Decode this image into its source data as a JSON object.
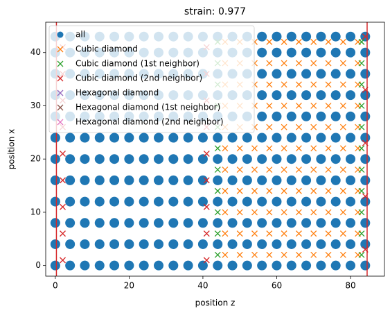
{
  "chart_data": {
    "type": "scatter",
    "title": "strain: 0.977",
    "xlabel": "position z",
    "ylabel": "position x",
    "xlim": [
      -2.6,
      89.2
    ],
    "ylim": [
      -2,
      45.7
    ],
    "xticks": [
      0,
      20,
      40,
      60,
      80
    ],
    "yticks": [
      0,
      10,
      20,
      30,
      40
    ],
    "grid": false,
    "legend": "upper left",
    "vlines": [
      0.3,
      84.5
    ],
    "vline_color": "#d62728",
    "series": [
      {
        "name": "all",
        "color": "#1f77b4",
        "marker": "o",
        "x": [
          0,
          4,
          8,
          12,
          16,
          20,
          24,
          28,
          32,
          36,
          40,
          44,
          48,
          52,
          56,
          60,
          64,
          68,
          72,
          76,
          80,
          84,
          0,
          4,
          8,
          12,
          16,
          20,
          24,
          28,
          32,
          36,
          40,
          44,
          48,
          52,
          56,
          60,
          64,
          68,
          72,
          76,
          80,
          84,
          0,
          4,
          8,
          12,
          16,
          20,
          24,
          28,
          32,
          36,
          40,
          44,
          48,
          52,
          56,
          60,
          64,
          68,
          72,
          76,
          80,
          84,
          0,
          4,
          8,
          12,
          16,
          20,
          24,
          28,
          32,
          36,
          40,
          44,
          48,
          52,
          56,
          60,
          64,
          68,
          72,
          76,
          80,
          84,
          0,
          4,
          8,
          12,
          16,
          20,
          24,
          28,
          32,
          36,
          40,
          44,
          48,
          52,
          56,
          60,
          64,
          68,
          72,
          76,
          80,
          84,
          0,
          4,
          8,
          12,
          16,
          20,
          24,
          28,
          32,
          36,
          40,
          44,
          48,
          52,
          56,
          60,
          64,
          68,
          72,
          76,
          80,
          84,
          0,
          4,
          8,
          12,
          16,
          20,
          24,
          28,
          32,
          36,
          40,
          44,
          48,
          52,
          56,
          60,
          64,
          68,
          72,
          76,
          80,
          84,
          0,
          4,
          8,
          12,
          16,
          20,
          24,
          28,
          32,
          36,
          40,
          44,
          48,
          52,
          56,
          60,
          64,
          68,
          72,
          76,
          80,
          84,
          0,
          4,
          8,
          12,
          16,
          20,
          24,
          28,
          32,
          36,
          40,
          44,
          48,
          52,
          56,
          60,
          64,
          68,
          72,
          76,
          80,
          84,
          0,
          4,
          8,
          12,
          16,
          20,
          24,
          28,
          32,
          36,
          40,
          44,
          48,
          52,
          56,
          60,
          64,
          68,
          72,
          76,
          80,
          84,
          0,
          4,
          8,
          12,
          16,
          20,
          24,
          28,
          32,
          36,
          40,
          44,
          48,
          52,
          56,
          60,
          64,
          68,
          72,
          76,
          80,
          84,
          0,
          4,
          8,
          12,
          16,
          20,
          24,
          28,
          32,
          36,
          40,
          44,
          48,
          52,
          56,
          60,
          64,
          68,
          72,
          76,
          80,
          84
        ],
        "values": [
          0,
          0,
          0,
          0,
          0,
          0,
          0,
          0,
          0,
          0,
          0,
          0,
          0,
          0,
          0,
          0,
          0,
          0,
          0,
          0,
          0,
          0,
          4,
          4,
          4,
          4,
          4,
          4,
          4,
          4,
          4,
          4,
          4,
          4,
          4,
          4,
          4,
          4,
          4,
          4,
          4,
          4,
          4,
          4,
          8,
          8,
          8,
          8,
          8,
          8,
          8,
          8,
          8,
          8,
          8,
          8,
          8,
          8,
          8,
          8,
          8,
          8,
          8,
          8,
          8,
          8,
          12,
          12,
          12,
          12,
          12,
          12,
          12,
          12,
          12,
          12,
          12,
          12,
          12,
          12,
          12,
          12,
          12,
          12,
          12,
          12,
          12,
          12,
          16,
          16,
          16,
          16,
          16,
          16,
          16,
          16,
          16,
          16,
          16,
          16,
          16,
          16,
          16,
          16,
          16,
          16,
          16,
          16,
          16,
          16,
          20,
          20,
          20,
          20,
          20,
          20,
          20,
          20,
          20,
          20,
          20,
          20,
          20,
          20,
          20,
          20,
          20,
          20,
          20,
          20,
          20,
          20,
          24,
          24,
          24,
          24,
          24,
          24,
          24,
          24,
          24,
          24,
          24,
          24,
          24,
          24,
          24,
          24,
          24,
          24,
          24,
          24,
          24,
          24,
          28,
          28,
          28,
          28,
          28,
          28,
          28,
          28,
          28,
          28,
          28,
          28,
          28,
          28,
          28,
          28,
          28,
          28,
          28,
          28,
          28,
          28,
          32,
          32,
          32,
          32,
          32,
          32,
          32,
          32,
          32,
          32,
          32,
          32,
          32,
          32,
          32,
          32,
          32,
          32,
          32,
          32,
          32,
          32,
          36,
          36,
          36,
          36,
          36,
          36,
          36,
          36,
          36,
          36,
          36,
          36,
          36,
          36,
          36,
          36,
          36,
          36,
          36,
          36,
          36,
          36,
          40,
          40,
          40,
          40,
          40,
          40,
          40,
          40,
          40,
          40,
          40,
          40,
          40,
          40,
          40,
          40,
          40,
          40,
          40,
          40,
          40,
          40,
          43,
          43,
          43,
          43,
          43,
          43,
          43,
          43,
          43,
          43,
          43,
          43,
          43,
          43,
          43,
          43,
          43,
          43,
          43,
          43,
          43,
          43
        ]
      },
      {
        "name": "Cubic diamond",
        "color": "#ff7f0e",
        "marker": "x",
        "x": [
          46,
          50,
          54,
          58,
          62,
          66,
          70,
          74,
          78,
          82,
          46,
          50,
          54,
          58,
          62,
          66,
          70,
          74,
          78,
          82,
          46,
          50,
          54,
          58,
          62,
          66,
          70,
          74,
          78,
          82,
          46,
          50,
          54,
          58,
          62,
          66,
          70,
          74,
          78,
          82,
          46,
          50,
          54,
          58,
          62,
          66,
          70,
          74,
          78,
          82,
          46,
          50,
          54,
          58,
          62,
          66,
          70,
          74,
          78,
          82,
          46,
          50,
          54,
          58,
          62,
          66,
          70,
          74,
          78,
          82,
          46,
          50,
          54,
          58,
          62,
          66,
          70,
          74,
          78,
          82,
          46,
          50,
          54,
          58,
          62,
          66,
          70,
          74,
          78,
          82,
          46,
          50,
          54,
          58,
          62,
          66,
          70,
          74,
          78,
          82,
          46,
          50,
          54,
          58,
          62,
          66,
          70,
          74,
          78,
          82
        ],
        "values": [
          2,
          2,
          2,
          2,
          2,
          2,
          2,
          2,
          2,
          2,
          6,
          6,
          6,
          6,
          6,
          6,
          6,
          6,
          6,
          6,
          10,
          10,
          10,
          10,
          10,
          10,
          10,
          10,
          10,
          10,
          14,
          14,
          14,
          14,
          14,
          14,
          14,
          14,
          14,
          14,
          18,
          18,
          18,
          18,
          18,
          18,
          18,
          18,
          18,
          18,
          22,
          22,
          22,
          22,
          22,
          22,
          22,
          22,
          22,
          22,
          26,
          26,
          26,
          26,
          26,
          26,
          26,
          26,
          26,
          26,
          30,
          30,
          30,
          30,
          30,
          30,
          30,
          30,
          30,
          30,
          34,
          34,
          34,
          34,
          34,
          34,
          34,
          34,
          34,
          34,
          38,
          38,
          38,
          38,
          38,
          38,
          38,
          38,
          38,
          38,
          42,
          42,
          42,
          42,
          42,
          42,
          42,
          42,
          42,
          42
        ]
      },
      {
        "name": "Cubic diamond (1st neighbor)",
        "color": "#2ca02c",
        "marker": "x",
        "x": [
          44,
          83,
          44,
          83,
          44,
          83,
          44,
          83,
          44,
          83,
          44,
          83,
          44,
          83,
          44,
          83,
          44,
          83,
          44,
          83,
          44,
          83
        ],
        "values": [
          2,
          2,
          6,
          6,
          10,
          10,
          14,
          14,
          18,
          18,
          22,
          22,
          26,
          26,
          30,
          30,
          34,
          34,
          38,
          38,
          42,
          42
        ]
      },
      {
        "name": "Cubic diamond (2nd neighbor)",
        "color": "#d62728",
        "marker": "x",
        "x": [
          2,
          41,
          2,
          41,
          2,
          41,
          2,
          41,
          2,
          41,
          2,
          41,
          2,
          41,
          2,
          41,
          2,
          41,
          84,
          84,
          84,
          84,
          84
        ],
        "values": [
          1,
          1,
          6,
          6,
          11,
          11,
          16,
          16,
          21,
          21,
          26,
          26,
          31,
          31,
          36,
          36,
          41,
          41,
          3,
          13,
          23,
          33,
          43
        ]
      },
      {
        "name": "Hexagonal diamond",
        "color": "#9467bd",
        "marker": "x",
        "x": [],
        "values": []
      },
      {
        "name": "Hexagonal diamond (1st neighbor)",
        "color": "#8c564b",
        "marker": "x",
        "x": [],
        "values": []
      },
      {
        "name": "Hexagonal diamond (2nd neighbor)",
        "color": "#e377c2",
        "marker": "x",
        "x": [],
        "values": []
      }
    ]
  }
}
